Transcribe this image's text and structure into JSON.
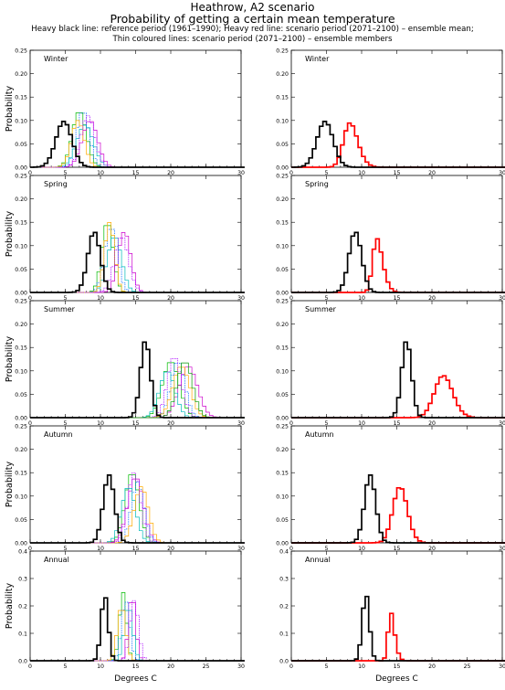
{
  "header": {
    "title_line1": "Heathrow, A2 scenario",
    "title_line2": "Probability of getting a certain mean temperature",
    "subtitle_line1": "Heavy black line: reference period (1961–1990); Heavy red line: scenario period (2071–2100) – ensemble mean;",
    "subtitle_line2": "Thin coloured lines: scenario period (2071–2100) – ensemble members"
  },
  "colors": {
    "reference": "#000000",
    "ensemble_mean": "#ff0000",
    "members": [
      "#00bb00",
      "#cc00cc",
      "#0066ff",
      "#00bbbb",
      "#ffaa00",
      "#aa00ff",
      "#009900",
      "#ff44aa"
    ]
  },
  "chart_data": [
    {
      "type": "line",
      "panel": "Winter members",
      "season_label": "Winter",
      "ylabel": "Probability",
      "ylim": [
        0,
        0.25
      ],
      "yticks": [
        "0.00",
        "0.05",
        "0.10",
        "0.15",
        "0.20",
        "0.25"
      ],
      "xlim": [
        0,
        30
      ],
      "xticks": [
        "0",
        "5",
        "10",
        "15",
        "20",
        "30"
      ],
      "reference": {
        "mean": 4.8,
        "sd": 1.15,
        "peak": 0.098
      },
      "members": [
        {
          "mean": 7.0,
          "sd": 1.0,
          "peak": 0.12
        },
        {
          "mean": 8.5,
          "sd": 1.1,
          "peak": 0.1
        },
        {
          "mean": 7.5,
          "sd": 0.9,
          "peak": 0.12
        },
        {
          "mean": 7.8,
          "sd": 1.2,
          "peak": 0.09
        },
        {
          "mean": 6.8,
          "sd": 0.9,
          "peak": 0.1
        },
        {
          "mean": 8.2,
          "sd": 1.0,
          "peak": 0.11
        }
      ]
    },
    {
      "type": "line",
      "panel": "Winter mean",
      "season_label": "Winter",
      "ylim": [
        0,
        0.25
      ],
      "yticks": [
        "0.00",
        "0.05",
        "0.10",
        "0.15",
        "0.20",
        "0.25"
      ],
      "xlim": [
        0,
        30
      ],
      "xticks": [
        "0",
        "5",
        "10",
        "15",
        "20",
        "30"
      ],
      "reference": {
        "mean": 4.8,
        "sd": 1.15,
        "peak": 0.098
      },
      "ensemble_mean": {
        "mean": 7.6,
        "sd": 1.4,
        "skew": 1.5,
        "peak": 0.095
      }
    },
    {
      "type": "line",
      "panel": "Spring members",
      "season_label": "Spring",
      "ylabel": "Probability",
      "ylim": [
        0,
        0.25
      ],
      "yticks": [
        "0.00",
        "0.05",
        "0.10",
        "0.15",
        "0.20",
        "0.25"
      ],
      "xlim": [
        0,
        30
      ],
      "xticks": [
        "0",
        "5",
        "10",
        "15",
        "20",
        "30"
      ],
      "reference": {
        "mean": 9.1,
        "sd": 0.9,
        "peak": 0.13
      },
      "members": [
        {
          "mean": 11.0,
          "sd": 0.8,
          "peak": 0.15
        },
        {
          "mean": 13.4,
          "sd": 0.9,
          "peak": 0.13
        },
        {
          "mean": 11.5,
          "sd": 0.9,
          "peak": 0.14
        },
        {
          "mean": 12.0,
          "sd": 1.0,
          "peak": 0.12
        },
        {
          "mean": 11.3,
          "sd": 0.7,
          "peak": 0.15
        },
        {
          "mean": 13.0,
          "sd": 1.0,
          "peak": 0.12
        }
      ]
    },
    {
      "type": "line",
      "panel": "Spring mean",
      "season_label": "Spring",
      "ylim": [
        0,
        0.25
      ],
      "yticks": [
        "0.00",
        "0.05",
        "0.10",
        "0.15",
        "0.20",
        "0.25"
      ],
      "xlim": [
        0,
        30
      ],
      "xticks": [
        "0",
        "5",
        "10",
        "15",
        "20",
        "30"
      ],
      "reference": {
        "mean": 9.1,
        "sd": 0.9,
        "peak": 0.13
      },
      "ensemble_mean": {
        "mean": 11.6,
        "sd": 1.1,
        "skew": 2.2,
        "peak": 0.115
      }
    },
    {
      "type": "line",
      "panel": "Summer members",
      "season_label": "Summer",
      "ylabel": "Probability",
      "ylim": [
        0,
        0.25
      ],
      "yticks": [
        "0.00",
        "0.05",
        "0.10",
        "0.15",
        "0.20",
        "0.25"
      ],
      "xlim": [
        0,
        30
      ],
      "xticks": [
        "0",
        "5",
        "10",
        "15",
        "20",
        "30"
      ],
      "reference": {
        "mean": 16.4,
        "sd": 0.7,
        "peak": 0.165
      },
      "members": [
        {
          "mean": 20.0,
          "sd": 1.2,
          "peak": 0.12
        },
        {
          "mean": 22.5,
          "sd": 1.3,
          "peak": 0.11
        },
        {
          "mean": 21.0,
          "sd": 1.0,
          "peak": 0.12
        },
        {
          "mean": 19.5,
          "sd": 1.1,
          "peak": 0.1
        },
        {
          "mean": 21.5,
          "sd": 1.2,
          "peak": 0.11
        },
        {
          "mean": 20.5,
          "sd": 1.0,
          "peak": 0.13
        },
        {
          "mean": 22.0,
          "sd": 1.1,
          "peak": 0.12
        }
      ]
    },
    {
      "type": "line",
      "panel": "Summer mean",
      "season_label": "Summer",
      "ylim": [
        0,
        0.25
      ],
      "yticks": [
        "0.00",
        "0.05",
        "0.10",
        "0.15",
        "0.20",
        "0.25"
      ],
      "xlim": [
        0,
        30
      ],
      "xticks": [
        "0",
        "5",
        "10",
        "15",
        "20",
        "30"
      ],
      "reference": {
        "mean": 16.4,
        "sd": 0.7,
        "peak": 0.165
      },
      "ensemble_mean": {
        "mean": 20.8,
        "sd": 1.6,
        "skew": 1.0,
        "peak": 0.09
      }
    },
    {
      "type": "line",
      "panel": "Autumn members",
      "season_label": "Autumn",
      "ylabel": "Probability",
      "ylim": [
        0,
        0.25
      ],
      "yticks": [
        "0.00",
        "0.05",
        "0.10",
        "0.15",
        "0.20",
        "0.25"
      ],
      "xlim": [
        0,
        30
      ],
      "xticks": [
        "0",
        "5",
        "10",
        "15",
        "20",
        "30"
      ],
      "reference": {
        "mean": 11.2,
        "sd": 0.8,
        "peak": 0.145
      },
      "members": [
        {
          "mean": 14.5,
          "sd": 1.0,
          "peak": 0.15
        },
        {
          "mean": 15.0,
          "sd": 1.1,
          "peak": 0.14
        },
        {
          "mean": 15.3,
          "sd": 0.9,
          "peak": 0.13
        },
        {
          "mean": 14.0,
          "sd": 1.0,
          "peak": 0.12
        },
        {
          "mean": 15.8,
          "sd": 1.0,
          "peak": 0.12
        },
        {
          "mean": 14.8,
          "sd": 0.9,
          "peak": 0.15
        }
      ]
    },
    {
      "type": "line",
      "panel": "Autumn mean",
      "season_label": "Autumn",
      "ylim": [
        0,
        0.25
      ],
      "yticks": [
        "0.00",
        "0.05",
        "0.10",
        "0.15",
        "0.20",
        "0.25"
      ],
      "xlim": [
        0,
        30
      ],
      "xticks": [
        "0",
        "5",
        "10",
        "15",
        "20",
        "30"
      ],
      "reference": {
        "mean": 11.2,
        "sd": 0.8,
        "peak": 0.145
      },
      "ensemble_mean": {
        "mean": 14.9,
        "sd": 1.2,
        "skew": 0.8,
        "peak": 0.12
      }
    },
    {
      "type": "line",
      "panel": "Annual members",
      "season_label": "Annual",
      "ylabel": "Probability",
      "xlabel": "Degrees C",
      "ylim": [
        0,
        0.4
      ],
      "yticks": [
        "0.0",
        "0.1",
        "0.2",
        "0.3",
        "0.4"
      ],
      "xlim": [
        0,
        30
      ],
      "xticks": [
        "0",
        "5",
        "10",
        "15",
        "20",
        "25",
        "30"
      ],
      "reference": {
        "mean": 10.6,
        "sd": 0.5,
        "peak": 0.24
      },
      "members": [
        {
          "mean": 13.2,
          "sd": 0.5,
          "peak": 0.25
        },
        {
          "mean": 14.5,
          "sd": 0.5,
          "peak": 0.24
        },
        {
          "mean": 13.6,
          "sd": 0.6,
          "peak": 0.22
        },
        {
          "mean": 14.0,
          "sd": 0.6,
          "peak": 0.2
        },
        {
          "mean": 13.0,
          "sd": 0.6,
          "peak": 0.2
        },
        {
          "mean": 14.8,
          "sd": 0.6,
          "peak": 0.22
        }
      ]
    },
    {
      "type": "line",
      "panel": "Annual mean",
      "season_label": "Annual",
      "xlabel": "Degrees C",
      "ylim": [
        0,
        0.4
      ],
      "yticks": [
        "0.0",
        "0.1",
        "0.2",
        "0.3",
        "0.4"
      ],
      "xlim": [
        0,
        30
      ],
      "xticks": [
        "0",
        "5",
        "10",
        "15",
        "20",
        "25",
        "30"
      ],
      "reference": {
        "mean": 10.6,
        "sd": 0.5,
        "peak": 0.245
      },
      "ensemble_mean": {
        "mean": 13.8,
        "sd": 0.7,
        "skew": 2.0,
        "peak": 0.175
      }
    }
  ]
}
